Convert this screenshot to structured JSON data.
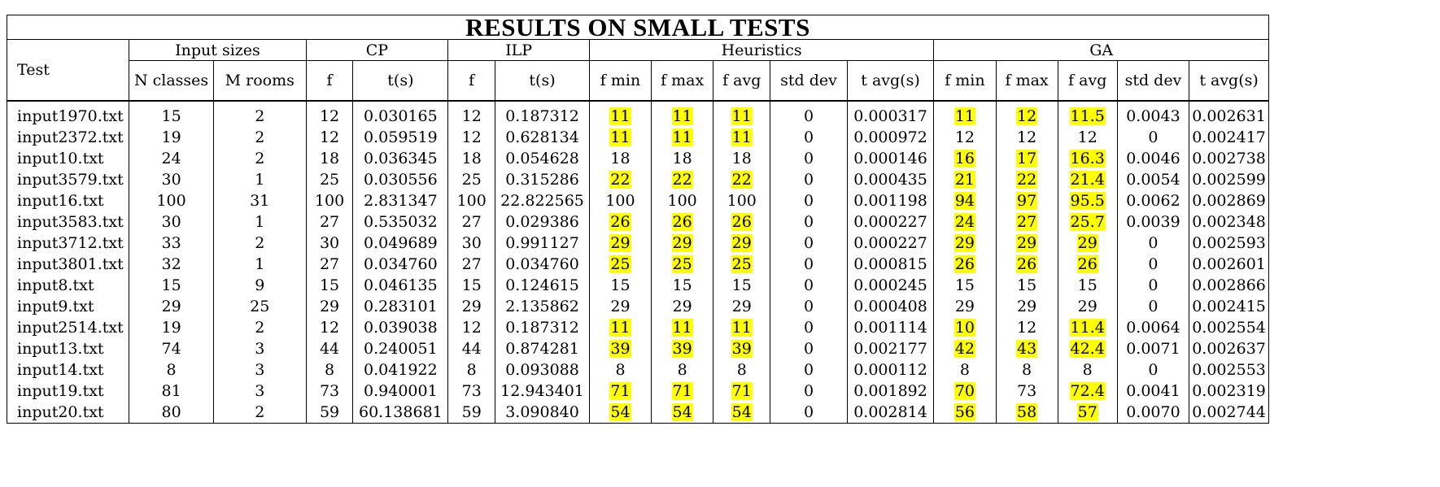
{
  "title": "RESULTS ON SMALL TESTS",
  "headers": {
    "test": "Test",
    "input_sizes": "Input sizes",
    "cp": "CP",
    "ilp": "ILP",
    "heuristics": "Heuristics",
    "ga": "GA",
    "n_classes": "N classes",
    "m_rooms": "M rooms",
    "f": "f",
    "t_s": "t(s)",
    "f_min": "f min",
    "f_max": "f max",
    "f_avg": "f avg",
    "std_dev": "std dev",
    "t_avg_s": "t avg(s)"
  },
  "highlight_color": "#ffff00",
  "rows": [
    {
      "test": "input1970.txt",
      "n": "15",
      "m": "2",
      "cp_f": "12",
      "cp_t": "0.030165",
      "ilp_f": "12",
      "ilp_t": "0.187312",
      "h_fmin": "11",
      "h_fmax": "11",
      "h_favg": "11",
      "h_std": "0",
      "h_tavg": "0.000317",
      "g_fmin": "11",
      "g_fmax": "12",
      "g_favg": "11.5",
      "g_std": "0.0043",
      "g_tavg": "0.002631",
      "hl": [
        "h_fmin",
        "h_fmax",
        "h_favg",
        "g_fmin",
        "g_fmax",
        "g_favg"
      ]
    },
    {
      "test": "input2372.txt",
      "n": "19",
      "m": "2",
      "cp_f": "12",
      "cp_t": "0.059519",
      "ilp_f": "12",
      "ilp_t": "0.628134",
      "h_fmin": "11",
      "h_fmax": "11",
      "h_favg": "11",
      "h_std": "0",
      "h_tavg": "0.000972",
      "g_fmin": "12",
      "g_fmax": "12",
      "g_favg": "12",
      "g_std": "0",
      "g_tavg": "0.002417",
      "hl": [
        "h_fmin",
        "h_fmax",
        "h_favg"
      ]
    },
    {
      "test": "input10.txt",
      "n": "24",
      "m": "2",
      "cp_f": "18",
      "cp_t": "0.036345",
      "ilp_f": "18",
      "ilp_t": "0.054628",
      "h_fmin": "18",
      "h_fmax": "18",
      "h_favg": "18",
      "h_std": "0",
      "h_tavg": "0.000146",
      "g_fmin": "16",
      "g_fmax": "17",
      "g_favg": "16.3",
      "g_std": "0.0046",
      "g_tavg": "0.002738",
      "hl": [
        "g_fmin",
        "g_fmax",
        "g_favg"
      ]
    },
    {
      "test": "input3579.txt",
      "n": "30",
      "m": "1",
      "cp_f": "25",
      "cp_t": "0.030556",
      "ilp_f": "25",
      "ilp_t": "0.315286",
      "h_fmin": "22",
      "h_fmax": "22",
      "h_favg": "22",
      "h_std": "0",
      "h_tavg": "0.000435",
      "g_fmin": "21",
      "g_fmax": "22",
      "g_favg": "21.4",
      "g_std": "0.0054",
      "g_tavg": "0.002599",
      "hl": [
        "h_fmin",
        "h_fmax",
        "h_favg",
        "g_fmin",
        "g_fmax",
        "g_favg"
      ]
    },
    {
      "test": "input16.txt",
      "n": "100",
      "m": "31",
      "cp_f": "100",
      "cp_t": "2.831347",
      "ilp_f": "100",
      "ilp_t": "22.822565",
      "h_fmin": "100",
      "h_fmax": "100",
      "h_favg": "100",
      "h_std": "0",
      "h_tavg": "0.001198",
      "g_fmin": "94",
      "g_fmax": "97",
      "g_favg": "95.5",
      "g_std": "0.0062",
      "g_tavg": "0.002869",
      "hl": [
        "g_fmin",
        "g_fmax",
        "g_favg"
      ]
    },
    {
      "test": "input3583.txt",
      "n": "30",
      "m": "1",
      "cp_f": "27",
      "cp_t": "0.535032",
      "ilp_f": "27",
      "ilp_t": "0.029386",
      "h_fmin": "26",
      "h_fmax": "26",
      "h_favg": "26",
      "h_std": "0",
      "h_tavg": "0.000227",
      "g_fmin": "24",
      "g_fmax": "27",
      "g_favg": "25.7",
      "g_std": "0.0039",
      "g_tavg": "0.002348",
      "hl": [
        "h_fmin",
        "h_fmax",
        "h_favg",
        "g_fmin",
        "g_fmax",
        "g_favg"
      ]
    },
    {
      "test": "input3712.txt",
      "n": "33",
      "m": "2",
      "cp_f": "30",
      "cp_t": "0.049689",
      "ilp_f": "30",
      "ilp_t": "0.991127",
      "h_fmin": "29",
      "h_fmax": "29",
      "h_favg": "29",
      "h_std": "0",
      "h_tavg": "0.000227",
      "g_fmin": "29",
      "g_fmax": "29",
      "g_favg": "29",
      "g_std": "0",
      "g_tavg": "0.002593",
      "hl": [
        "h_fmin",
        "h_fmax",
        "h_favg",
        "g_fmin",
        "g_fmax",
        "g_favg"
      ]
    },
    {
      "test": "input3801.txt",
      "n": "32",
      "m": "1",
      "cp_f": "27",
      "cp_t": "0.034760",
      "ilp_f": "27",
      "ilp_t": "0.034760",
      "h_fmin": "25",
      "h_fmax": "25",
      "h_favg": "25",
      "h_std": "0",
      "h_tavg": "0.000815",
      "g_fmin": "26",
      "g_fmax": "26",
      "g_favg": "26",
      "g_std": "0",
      "g_tavg": "0.002601",
      "hl": [
        "h_fmin",
        "h_fmax",
        "h_favg",
        "g_fmin",
        "g_fmax",
        "g_favg"
      ]
    },
    {
      "test": "input8.txt",
      "n": "15",
      "m": "9",
      "cp_f": "15",
      "cp_t": "0.046135",
      "ilp_f": "15",
      "ilp_t": "0.124615",
      "h_fmin": "15",
      "h_fmax": "15",
      "h_favg": "15",
      "h_std": "0",
      "h_tavg": "0.000245",
      "g_fmin": "15",
      "g_fmax": "15",
      "g_favg": "15",
      "g_std": "0",
      "g_tavg": "0.002866",
      "hl": []
    },
    {
      "test": "input9.txt",
      "n": "29",
      "m": "25",
      "cp_f": "29",
      "cp_t": "0.283101",
      "ilp_f": "29",
      "ilp_t": "2.135862",
      "h_fmin": "29",
      "h_fmax": "29",
      "h_favg": "29",
      "h_std": "0",
      "h_tavg": "0.000408",
      "g_fmin": "29",
      "g_fmax": "29",
      "g_favg": "29",
      "g_std": "0",
      "g_tavg": "0.002415",
      "hl": []
    },
    {
      "test": "input2514.txt",
      "n": "19",
      "m": "2",
      "cp_f": "12",
      "cp_t": "0.039038",
      "ilp_f": "12",
      "ilp_t": "0.187312",
      "h_fmin": "11",
      "h_fmax": "11",
      "h_favg": "11",
      "h_std": "0",
      "h_tavg": "0.001114",
      "g_fmin": "10",
      "g_fmax": "12",
      "g_favg": "11.4",
      "g_std": "0.0064",
      "g_tavg": "0.002554",
      "hl": [
        "h_fmin",
        "h_fmax",
        "h_favg",
        "g_fmin",
        "g_favg"
      ]
    },
    {
      "test": "input13.txt",
      "n": "74",
      "m": "3",
      "cp_f": "44",
      "cp_t": "0.240051",
      "ilp_f": "44",
      "ilp_t": "0.874281",
      "h_fmin": "39",
      "h_fmax": "39",
      "h_favg": "39",
      "h_std": "0",
      "h_tavg": "0.002177",
      "g_fmin": "42",
      "g_fmax": "43",
      "g_favg": "42.4",
      "g_std": "0.0071",
      "g_tavg": "0.002637",
      "hl": [
        "h_fmin",
        "h_fmax",
        "h_favg",
        "g_fmin",
        "g_fmax",
        "g_favg"
      ]
    },
    {
      "test": "input14.txt",
      "n": "8",
      "m": "3",
      "cp_f": "8",
      "cp_t": "0.041922",
      "ilp_f": "8",
      "ilp_t": "0.093088",
      "h_fmin": "8",
      "h_fmax": "8",
      "h_favg": "8",
      "h_std": "0",
      "h_tavg": "0.000112",
      "g_fmin": "8",
      "g_fmax": "8",
      "g_favg": "8",
      "g_std": "0",
      "g_tavg": "0.002553",
      "hl": []
    },
    {
      "test": "input19.txt",
      "n": "81",
      "m": "3",
      "cp_f": "73",
      "cp_t": "0.940001",
      "ilp_f": "73",
      "ilp_t": "12.943401",
      "h_fmin": "71",
      "h_fmax": "71",
      "h_favg": "71",
      "h_std": "0",
      "h_tavg": "0.001892",
      "g_fmin": "70",
      "g_fmax": "73",
      "g_favg": "72.4",
      "g_std": "0.0041",
      "g_tavg": "0.002319",
      "hl": [
        "h_fmin",
        "h_fmax",
        "h_favg",
        "g_fmin",
        "g_favg"
      ]
    },
    {
      "test": "input20.txt",
      "n": "80",
      "m": "2",
      "cp_f": "59",
      "cp_t": "60.138681",
      "ilp_f": "59",
      "ilp_t": "3.090840",
      "h_fmin": "54",
      "h_fmax": "54",
      "h_favg": "54",
      "h_std": "0",
      "h_tavg": "0.002814",
      "g_fmin": "56",
      "g_fmax": "58",
      "g_favg": "57",
      "g_std": "0.0070",
      "g_tavg": "0.002744",
      "hl": [
        "h_fmin",
        "h_fmax",
        "h_favg",
        "g_fmin",
        "g_fmax",
        "g_favg"
      ]
    }
  ]
}
